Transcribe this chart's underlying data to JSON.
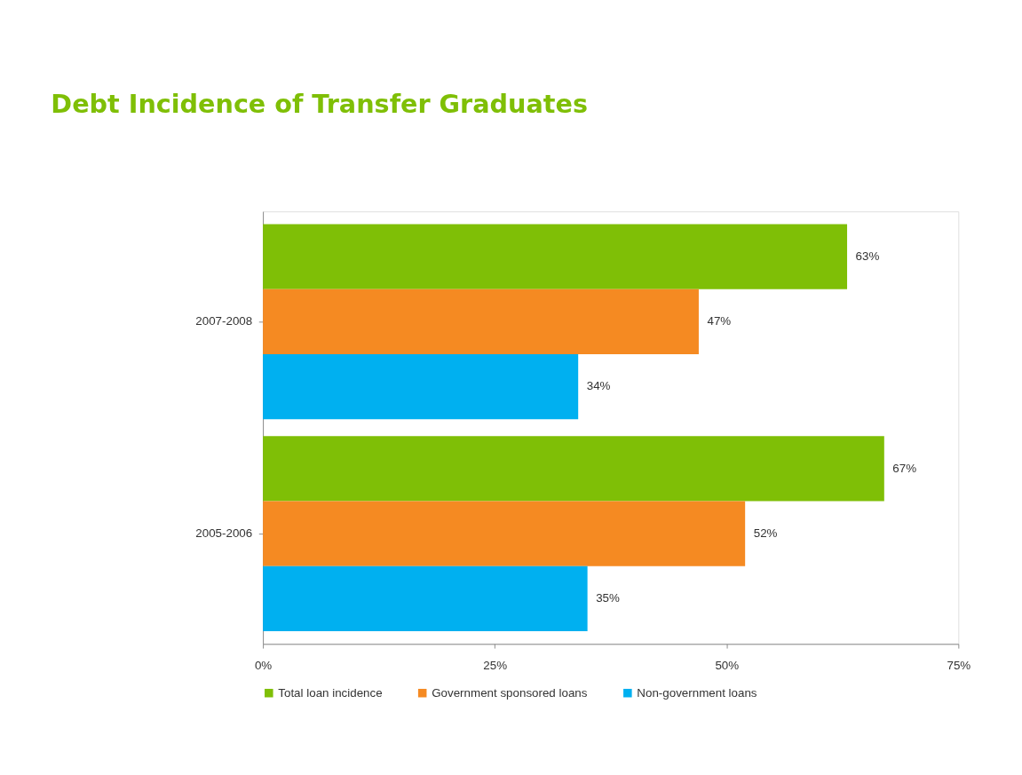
{
  "chart_data": {
    "type": "bar",
    "orientation": "horizontal",
    "title": "Debt Incidence of Transfer Graduates",
    "categories": [
      "2007-2008",
      "2005-2006"
    ],
    "series": [
      {
        "name": "Total loan incidence",
        "color": "#7fbf06",
        "values": [
          63,
          67
        ],
        "value_labels": [
          "63%",
          "67%"
        ]
      },
      {
        "name": "Government sponsored loans",
        "color": "#f58a22",
        "values": [
          47,
          52
        ],
        "value_labels": [
          "47%",
          "52%"
        ]
      },
      {
        "name": "Non-government loans",
        "color": "#00b0f0",
        "values": [
          34,
          35
        ],
        "value_labels": [
          "34%",
          "35%"
        ]
      }
    ],
    "xlim": [
      0,
      75
    ],
    "xticks": [
      {
        "value": 0,
        "label": "0%"
      },
      {
        "value": 25,
        "label": "25%"
      },
      {
        "value": 50,
        "label": "50%"
      },
      {
        "value": 75,
        "label": "75%"
      }
    ],
    "grid": false,
    "legend": "bottom"
  }
}
